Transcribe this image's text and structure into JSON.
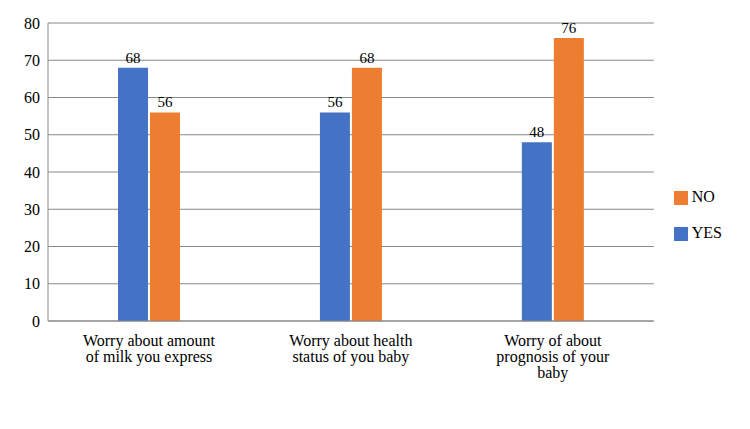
{
  "chart_data": {
    "type": "bar",
    "categories": [
      "Worry about amount of milk you express",
      "Worry about health status of you baby",
      "Worry of about prognosis of your baby"
    ],
    "series": [
      {
        "name": "YES",
        "color": "#4472c4",
        "values": [
          68,
          56,
          48
        ]
      },
      {
        "name": "NO",
        "color": "#ed7d31",
        "values": [
          56,
          68,
          76
        ]
      }
    ],
    "ylim": [
      0,
      80
    ],
    "yticks": [
      0,
      10,
      20,
      30,
      40,
      50,
      60,
      70,
      80
    ],
    "grid": true,
    "legend": "right",
    "data_labels": true
  }
}
